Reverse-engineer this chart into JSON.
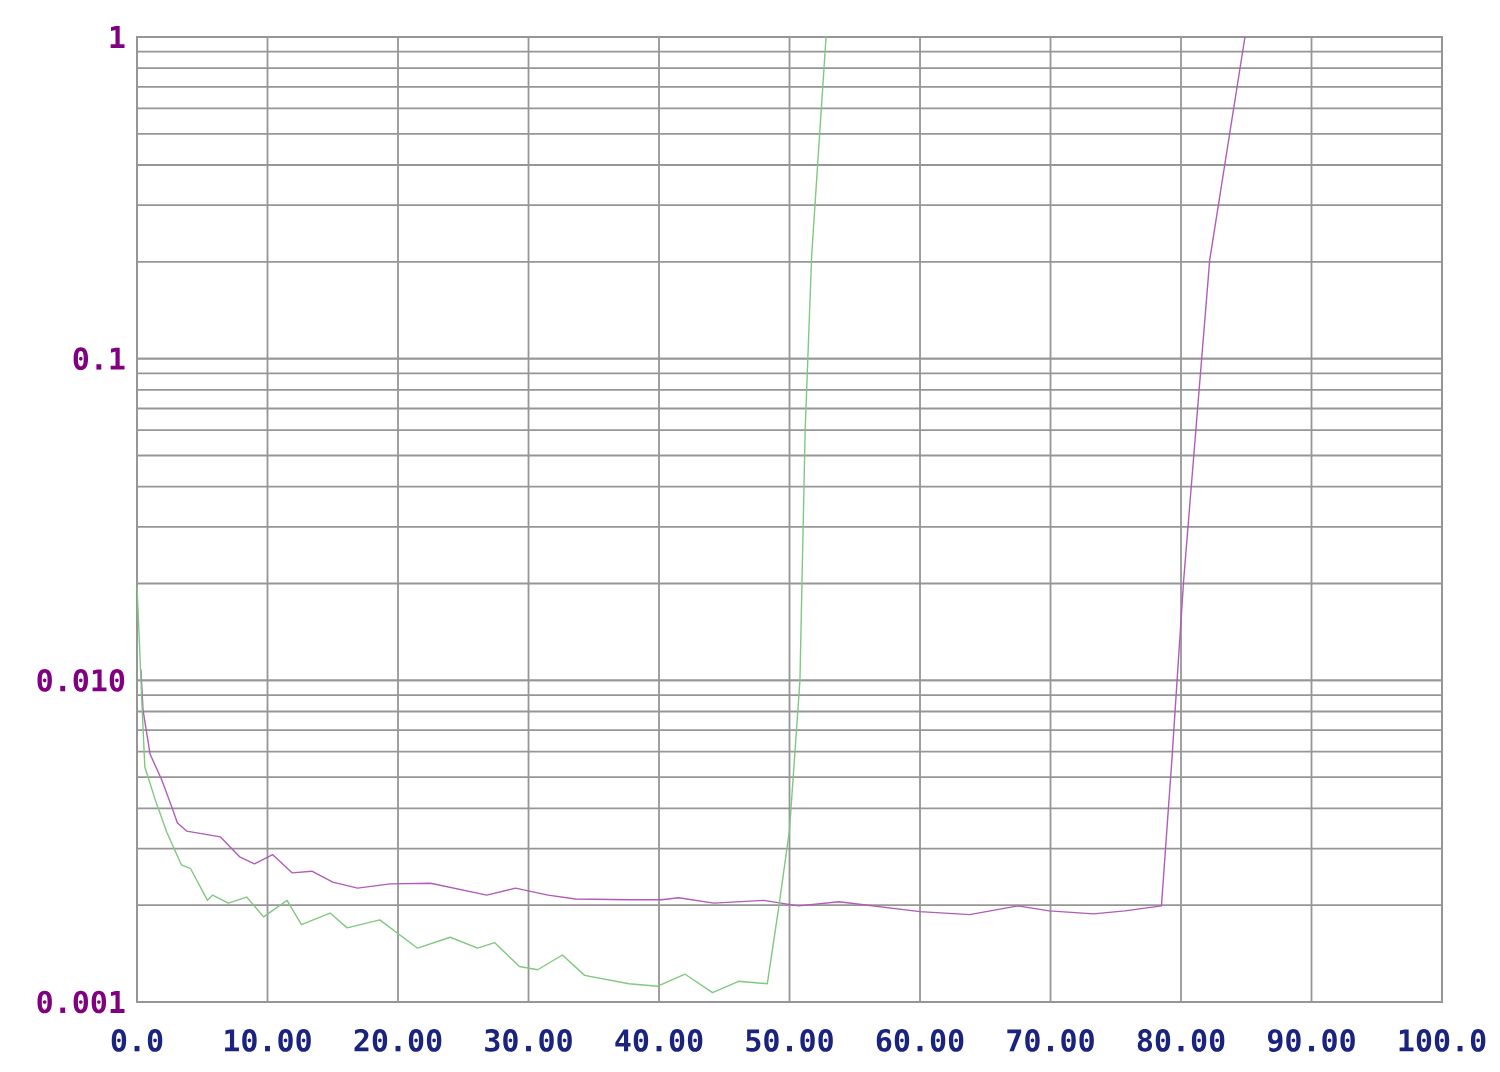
{
  "chart_data": {
    "type": "line",
    "log": "y",
    "grid": true,
    "xlim": [
      0,
      100
    ],
    "ylim": [
      0.001,
      1
    ],
    "xticks": [
      {
        "value": 0,
        "label": "0.0"
      },
      {
        "value": 10,
        "label": "10.00"
      },
      {
        "value": 20,
        "label": "20.00"
      },
      {
        "value": 30,
        "label": "30.00"
      },
      {
        "value": 40,
        "label": "40.00"
      },
      {
        "value": 50,
        "label": "50.00"
      },
      {
        "value": 60,
        "label": "60.00"
      },
      {
        "value": 70,
        "label": "70.00"
      },
      {
        "value": 80,
        "label": "80.00"
      },
      {
        "value": 90,
        "label": "90.00"
      },
      {
        "value": 100,
        "label": "100.0"
      }
    ],
    "yticks": [
      0.001,
      {
        "value": 0.01,
        "label": "0.010"
      },
      0.1,
      1
    ],
    "series": [
      {
        "color": "#b05cb8",
        "x": [
          0.3,
          0.46,
          1.0,
          1.9,
          2.7,
          3.1,
          3.8,
          6.4,
          7.9,
          9.0,
          10.4,
          11.9,
          13.4,
          15.0,
          16.9,
          19.4,
          22.5,
          26.8,
          29.0,
          31.5,
          33.6,
          37.7,
          40.2,
          41.5,
          44.2,
          48.0,
          50.7,
          53.8,
          60.0,
          63.8,
          67.5,
          69.9,
          73.3,
          75.7,
          78.5,
          79.3,
          80.2,
          81.2,
          82.2,
          84.9
        ],
        "values": [
          0.0108,
          0.0081,
          0.0059,
          0.0049,
          0.004,
          0.0036,
          0.0034,
          0.00326,
          0.00282,
          0.00269,
          0.00287,
          0.00252,
          0.00255,
          0.00236,
          0.00226,
          0.00233,
          0.00234,
          0.00215,
          0.00226,
          0.00215,
          0.00209,
          0.00208,
          0.00208,
          0.00211,
          0.00203,
          0.00207,
          0.00199,
          0.00205,
          0.00191,
          0.00187,
          0.00199,
          0.00192,
          0.00188,
          0.00192,
          0.00199,
          0.00566,
          0.0204,
          0.0645,
          0.203,
          1
        ]
      },
      {
        "color": "#80c880",
        "x": [
          0.0,
          0.4,
          0.6,
          1.4,
          2.3,
          3.4,
          4.1,
          5.4,
          5.8,
          7.0,
          8.4,
          9.7,
          11.5,
          12.6,
          14.8,
          16.1,
          18.6,
          21.5,
          24.0,
          26.1,
          27.4,
          29.3,
          30.7,
          32.6,
          34.3,
          37.7,
          39.9,
          42.0,
          44.1,
          46.1,
          48.3,
          49.2,
          50.0,
          50.8,
          51.2,
          51.7,
          52.8
        ],
        "values": [
          0.0197,
          0.0081,
          0.00538,
          0.00425,
          0.00336,
          0.00267,
          0.0026,
          0.00207,
          0.00215,
          0.00203,
          0.00212,
          0.00184,
          0.00207,
          0.00174,
          0.00189,
          0.0017,
          0.0018,
          0.00147,
          0.00159,
          0.00147,
          0.00153,
          0.00129,
          0.00126,
          0.0014,
          0.00121,
          0.00114,
          0.00112,
          0.00122,
          0.00107,
          0.00116,
          0.00114,
          0.002,
          0.00343,
          0.01,
          0.06,
          0.21,
          1
        ]
      }
    ]
  }
}
